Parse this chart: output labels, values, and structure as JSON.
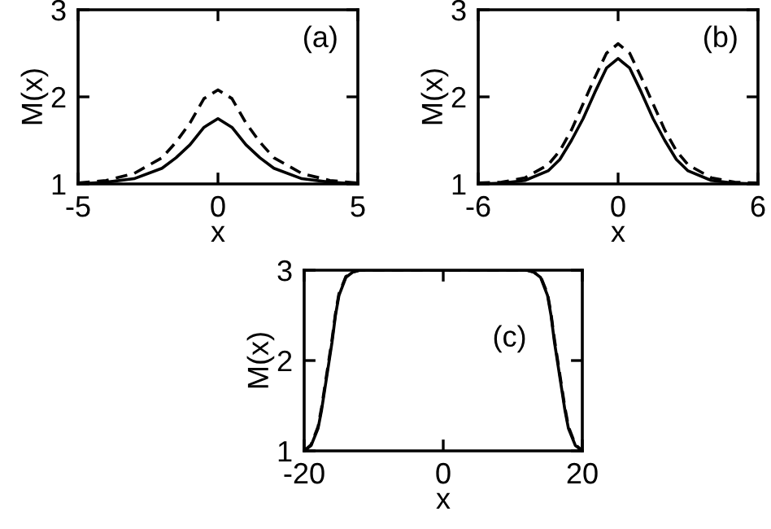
{
  "chart_data": [
    {
      "type": "line",
      "xlabel": "x",
      "ylabel": "M(x)",
      "annotations": [
        "(a)"
      ],
      "xlim": [
        -5,
        5
      ],
      "ylim": [
        1,
        3
      ],
      "xticks": [
        -5,
        0,
        5
      ],
      "yticks": [
        1,
        2,
        3
      ],
      "grid": false,
      "legend": false,
      "series": [
        {
          "color": "#000000",
          "line_style": "solid",
          "x": [
            -5,
            -4,
            -3,
            -2,
            -1.5,
            -1,
            -0.5,
            0,
            0.5,
            1,
            1.5,
            2,
            3,
            4,
            5
          ],
          "values": [
            1.0,
            1.02,
            1.06,
            1.18,
            1.3,
            1.45,
            1.65,
            1.75,
            1.65,
            1.45,
            1.3,
            1.18,
            1.06,
            1.02,
            1.0
          ]
        },
        {
          "color": "#000000",
          "line_style": "dashed",
          "x": [
            -5,
            -4,
            -3,
            -2,
            -1.5,
            -1,
            -0.5,
            0,
            0.5,
            1,
            1.5,
            2,
            3,
            4,
            5
          ],
          "values": [
            1.01,
            1.04,
            1.12,
            1.3,
            1.48,
            1.7,
            1.98,
            2.08,
            1.98,
            1.7,
            1.48,
            1.3,
            1.12,
            1.04,
            1.01
          ]
        }
      ]
    },
    {
      "type": "line",
      "xlabel": "x",
      "ylabel": "M(x)",
      "annotations": [
        "(b)"
      ],
      "xlim": [
        -6,
        6
      ],
      "ylim": [
        1,
        3
      ],
      "xticks": [
        -6,
        0,
        6
      ],
      "yticks": [
        1,
        2,
        3
      ],
      "grid": false,
      "legend": false,
      "series": [
        {
          "color": "#000000",
          "line_style": "solid",
          "x": [
            -6,
            -5,
            -4,
            -3,
            -2.5,
            -2,
            -1.5,
            -1,
            -0.5,
            0,
            0.5,
            1,
            1.5,
            2,
            2.5,
            3,
            4,
            5,
            6
          ],
          "values": [
            1.0,
            1.01,
            1.04,
            1.15,
            1.28,
            1.5,
            1.75,
            2.05,
            2.33,
            2.44,
            2.33,
            2.05,
            1.75,
            1.5,
            1.28,
            1.15,
            1.04,
            1.01,
            1.0
          ]
        },
        {
          "color": "#000000",
          "line_style": "dashed",
          "x": [
            -6,
            -5,
            -4,
            -3,
            -2.5,
            -2,
            -1.5,
            -1,
            -0.5,
            0,
            0.5,
            1,
            1.5,
            2,
            2.5,
            3,
            4,
            5,
            6
          ],
          "values": [
            1.01,
            1.02,
            1.07,
            1.22,
            1.38,
            1.62,
            1.92,
            2.22,
            2.5,
            2.61,
            2.5,
            2.22,
            1.92,
            1.62,
            1.38,
            1.22,
            1.07,
            1.02,
            1.01
          ]
        }
      ]
    },
    {
      "type": "line",
      "xlabel": "x",
      "ylabel": "M(x)",
      "annotations": [
        "(c)"
      ],
      "xlim": [
        -20,
        20
      ],
      "ylim": [
        1,
        3
      ],
      "xticks": [
        -20,
        0,
        20
      ],
      "yticks": [
        1,
        2,
        3
      ],
      "grid": false,
      "legend": false,
      "series": [
        {
          "color": "#000000",
          "line_style": "solid",
          "x": [
            -20,
            -19,
            -18,
            -17.5,
            -17,
            -16.5,
            -16,
            -15.5,
            -15,
            -14,
            -13,
            -12,
            0,
            12,
            13,
            14,
            15,
            15.5,
            16,
            16.5,
            17,
            17.5,
            18,
            19,
            20
          ],
          "values": [
            1.0,
            1.06,
            1.25,
            1.45,
            1.7,
            1.95,
            2.2,
            2.5,
            2.72,
            2.92,
            2.98,
            3.0,
            3.0,
            3.0,
            2.98,
            2.92,
            2.72,
            2.5,
            2.2,
            1.95,
            1.7,
            1.45,
            1.25,
            1.06,
            1.0
          ]
        },
        {
          "color": "#000000",
          "line_style": "dashed",
          "x": [
            -20,
            -19,
            -18,
            -17.5,
            -17,
            -16.5,
            -16,
            -15.5,
            -15,
            -14,
            -13,
            -12,
            0,
            12,
            13,
            14,
            15,
            15.5,
            16,
            16.5,
            17,
            17.5,
            18,
            19,
            20
          ],
          "values": [
            1.0,
            1.07,
            1.27,
            1.48,
            1.73,
            1.98,
            2.23,
            2.52,
            2.74,
            2.93,
            2.98,
            3.0,
            3.0,
            3.0,
            2.98,
            2.93,
            2.74,
            2.52,
            2.23,
            1.98,
            1.73,
            1.48,
            1.27,
            1.07,
            1.0
          ]
        }
      ]
    }
  ]
}
